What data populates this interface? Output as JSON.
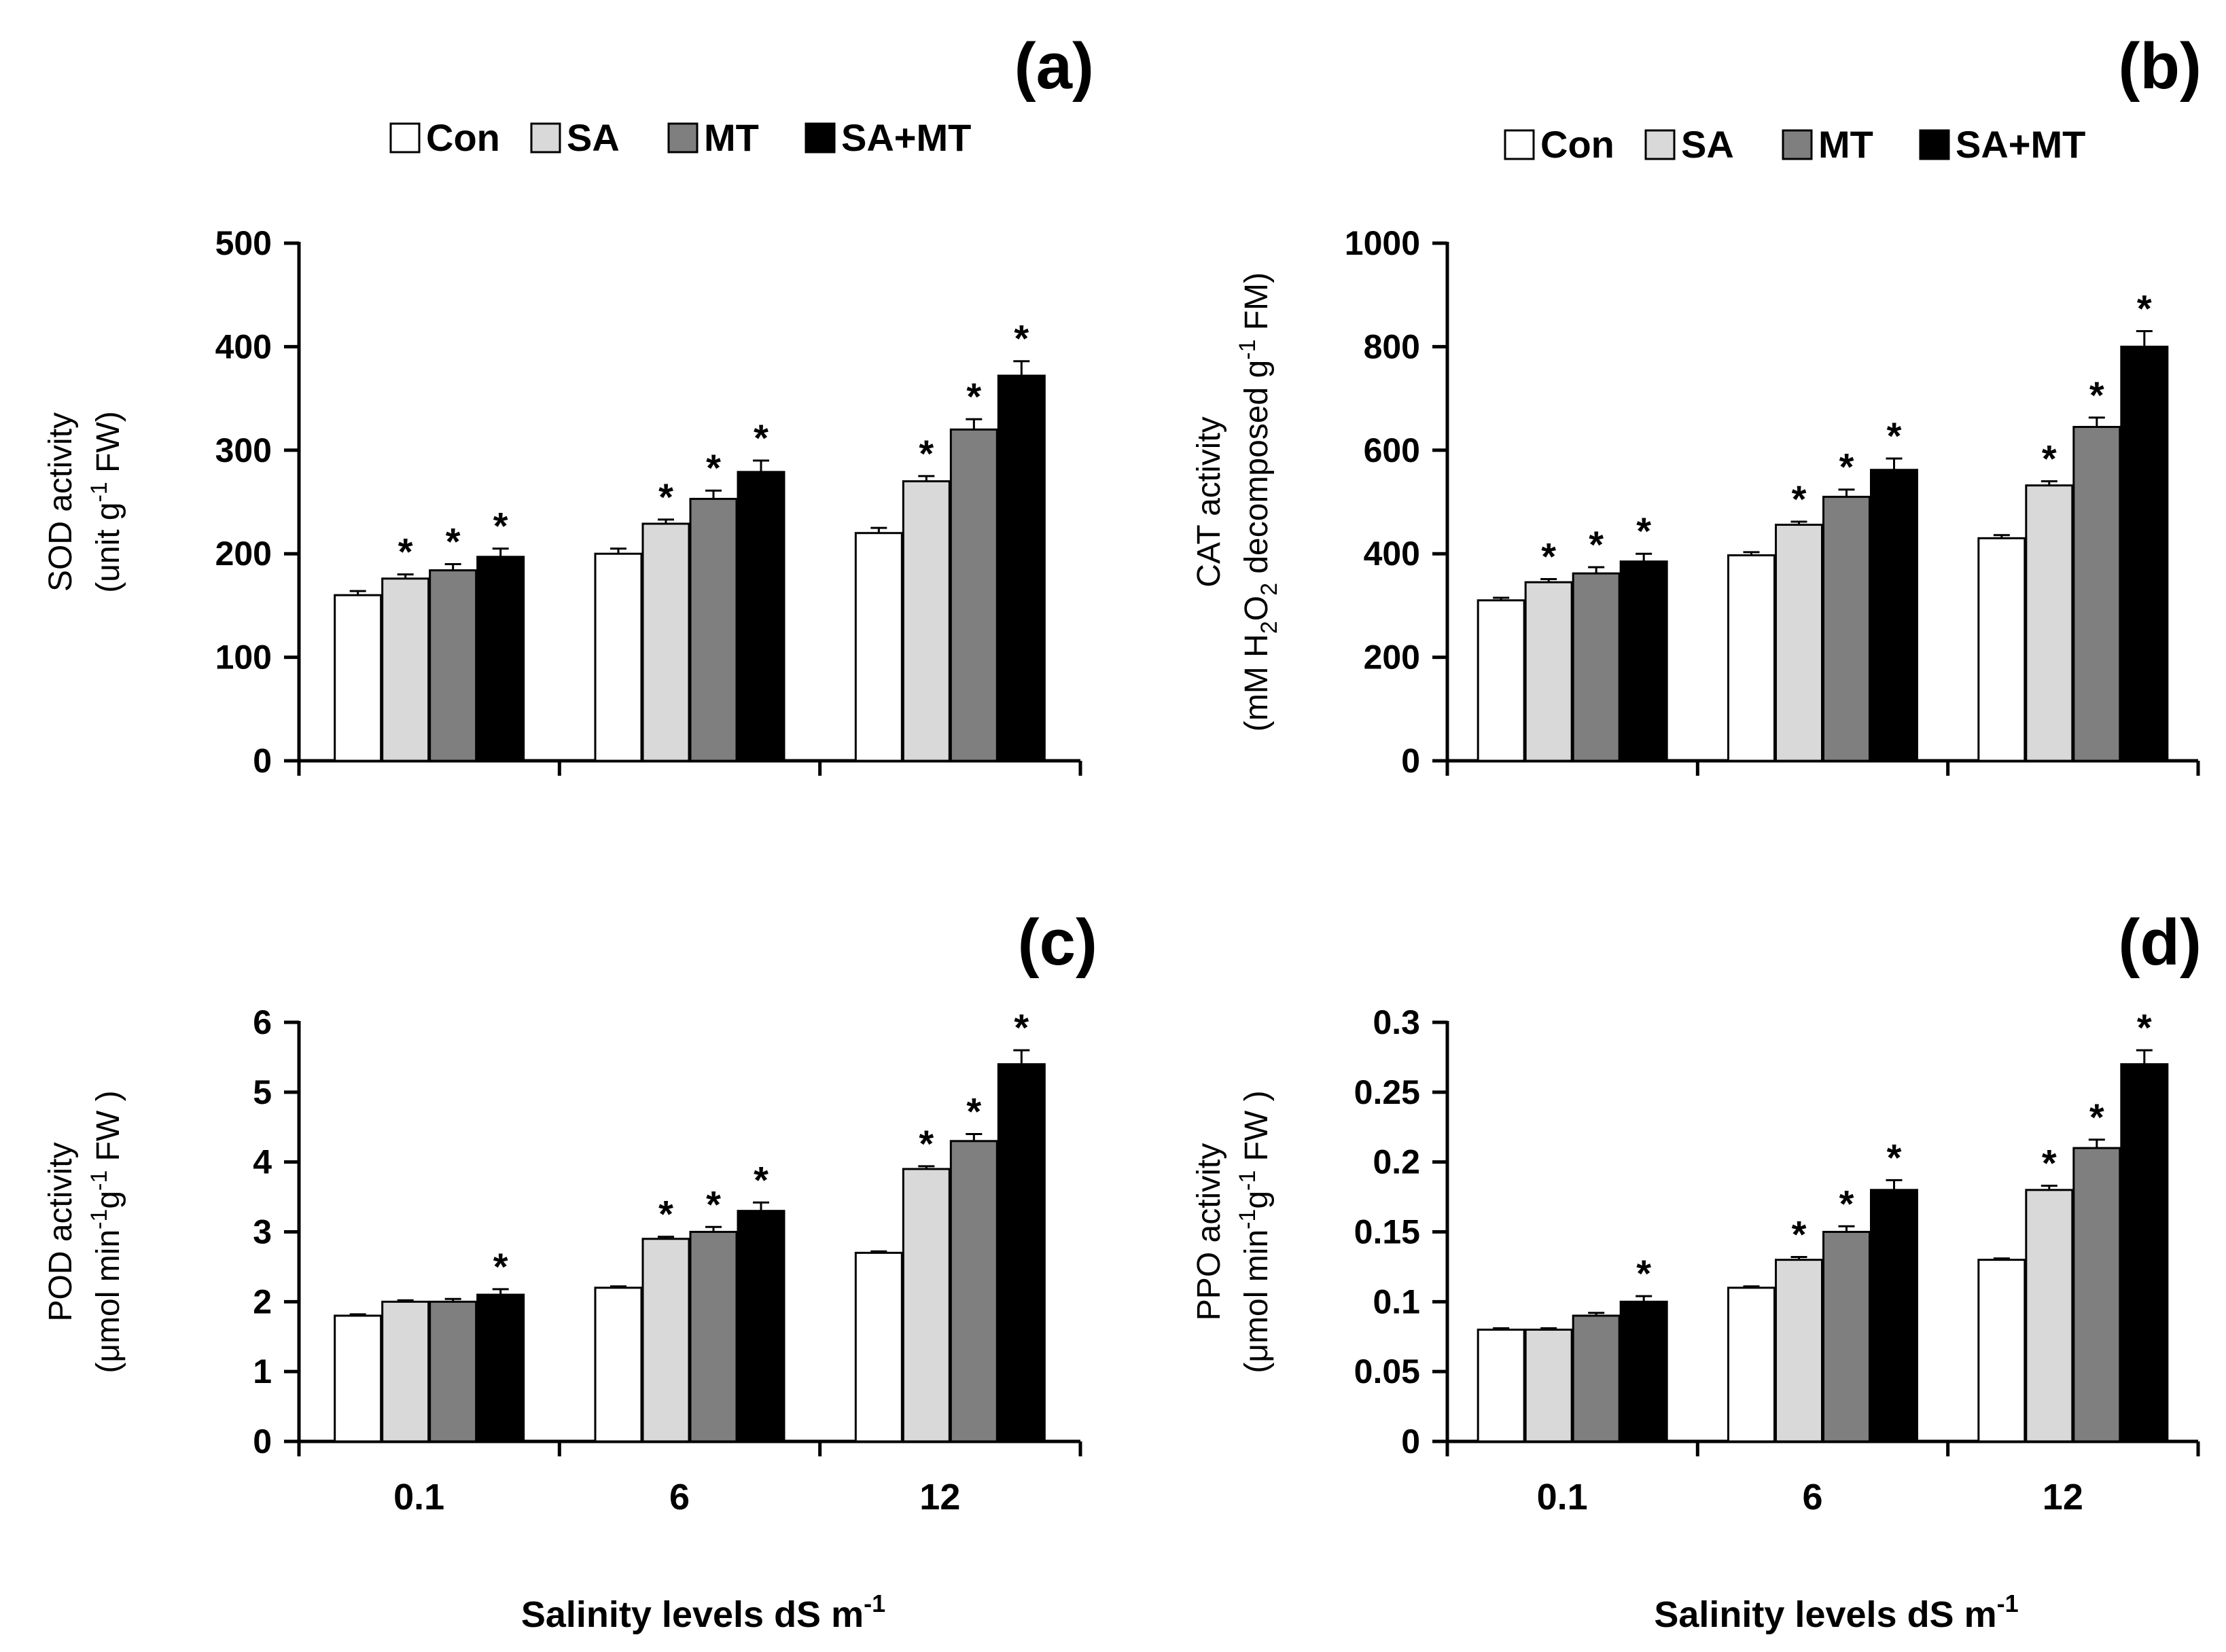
{
  "legend": {
    "items": [
      {
        "label": "Con",
        "color": "#ffffff"
      },
      {
        "label": "SA",
        "color": "#d9d9d9"
      },
      {
        "label": "MT",
        "color": "#7f7f7f"
      },
      {
        "label": "SA+MT",
        "color": "#000000"
      }
    ]
  },
  "xlabel": {
    "main": "Salinity levels dS m",
    "sup": "-1"
  },
  "chart_data": [
    {
      "type": "bar",
      "panel_label": "(a)",
      "categories": [
        "0.1",
        "6",
        "12"
      ],
      "ylim": [
        0,
        500
      ],
      "yticks": [
        "0",
        "100",
        "200",
        "300",
        "400",
        "500"
      ],
      "ylabel": {
        "line1": "SOD activity",
        "line2_parts": [
          {
            "t": "(unit g"
          },
          {
            "t": "-1",
            "sup": true
          },
          {
            "t": " FW)"
          }
        ]
      },
      "series": [
        {
          "name": "Con",
          "values": [
            160,
            200,
            220
          ],
          "errors": [
            4,
            5,
            5
          ],
          "sig": [
            false,
            false,
            false
          ]
        },
        {
          "name": "SA",
          "values": [
            176,
            229,
            270
          ],
          "errors": [
            4,
            4,
            5
          ],
          "sig": [
            true,
            true,
            true
          ]
        },
        {
          "name": "MT",
          "values": [
            184,
            253,
            320
          ],
          "errors": [
            6,
            8,
            10
          ],
          "sig": [
            true,
            true,
            true
          ]
        },
        {
          "name": "SA+MT",
          "values": [
            197,
            279,
            372
          ],
          "errors": [
            8,
            11,
            14
          ],
          "sig": [
            true,
            true,
            true
          ]
        }
      ],
      "sig_symbol": "*",
      "legend_placement": "top"
    },
    {
      "type": "bar",
      "panel_label": "(b)",
      "categories": [
        "0.1",
        "6",
        "12"
      ],
      "ylim": [
        0,
        1000
      ],
      "yticks": [
        "0",
        "200",
        "400",
        "600",
        "800",
        "1000"
      ],
      "ylabel": {
        "line1": "CAT activity",
        "line2_parts": [
          {
            "t": "(mM H"
          },
          {
            "t": "2",
            "sub": true
          },
          {
            "t": "O"
          },
          {
            "t": "2",
            "sub": true
          },
          {
            "t": " decomposed g"
          },
          {
            "t": "-1",
            "sup": true
          },
          {
            "t": " FM)"
          }
        ]
      },
      "series": [
        {
          "name": "Con",
          "values": [
            310,
            397,
            430
          ],
          "errors": [
            5,
            6,
            6
          ],
          "sig": [
            false,
            false,
            false
          ]
        },
        {
          "name": "SA",
          "values": [
            345,
            456,
            532
          ],
          "errors": [
            6,
            6,
            8
          ],
          "sig": [
            true,
            true,
            true
          ]
        },
        {
          "name": "MT",
          "values": [
            362,
            510,
            645
          ],
          "errors": [
            12,
            14,
            18
          ],
          "sig": [
            true,
            true,
            true
          ]
        },
        {
          "name": "SA+MT",
          "values": [
            385,
            562,
            800
          ],
          "errors": [
            15,
            22,
            30
          ],
          "sig": [
            true,
            true,
            true
          ]
        }
      ],
      "sig_symbol": "*",
      "legend_placement": "top"
    },
    {
      "type": "bar",
      "panel_label": "(c)",
      "categories": [
        "0.1",
        "6",
        "12"
      ],
      "ylim": [
        0,
        6
      ],
      "yticks": [
        "0",
        "1",
        "2",
        "3",
        "4",
        "5",
        "6"
      ],
      "ylabel": {
        "line1": "POD  activity",
        "line2_parts": [
          {
            "t": "(μmol min"
          },
          {
            "t": "-1",
            "sup": true
          },
          {
            "t": "g"
          },
          {
            "t": "-1",
            "sup": true
          },
          {
            "t": " FW )"
          }
        ]
      },
      "series": [
        {
          "name": "Con",
          "values": [
            1.8,
            2.2,
            2.7
          ],
          "errors": [
            0.02,
            0.02,
            0.02
          ],
          "sig": [
            false,
            false,
            false
          ]
        },
        {
          "name": "SA",
          "values": [
            2.0,
            2.9,
            3.9
          ],
          "errors": [
            0.02,
            0.03,
            0.04
          ],
          "sig": [
            false,
            true,
            true
          ]
        },
        {
          "name": "MT",
          "values": [
            2.0,
            3.0,
            4.3
          ],
          "errors": [
            0.04,
            0.07,
            0.1
          ],
          "sig": [
            false,
            true,
            true
          ]
        },
        {
          "name": "SA+MT",
          "values": [
            2.1,
            3.3,
            5.4
          ],
          "errors": [
            0.08,
            0.12,
            0.2
          ],
          "sig": [
            true,
            true,
            true
          ]
        }
      ],
      "sig_symbol": "*"
    },
    {
      "type": "bar",
      "panel_label": "(d)",
      "categories": [
        "0.1",
        "6",
        "12"
      ],
      "ylim": [
        0,
        0.3
      ],
      "yticks": [
        "0",
        "0.05",
        "0.1",
        "0.15",
        "0.2",
        "0.25",
        "0.3"
      ],
      "ylabel": {
        "line1": "PPO  activity",
        "line2_parts": [
          {
            "t": "(μmol min"
          },
          {
            "t": "-1",
            "sup": true
          },
          {
            "t": "g"
          },
          {
            "t": "-1",
            "sup": true
          },
          {
            "t": " FW )"
          }
        ]
      },
      "series": [
        {
          "name": "Con",
          "values": [
            0.08,
            0.11,
            0.13
          ],
          "errors": [
            0.001,
            0.001,
            0.001
          ],
          "sig": [
            false,
            false,
            false
          ]
        },
        {
          "name": "SA",
          "values": [
            0.08,
            0.13,
            0.18
          ],
          "errors": [
            0.001,
            0.002,
            0.003
          ],
          "sig": [
            false,
            true,
            true
          ]
        },
        {
          "name": "MT",
          "values": [
            0.09,
            0.15,
            0.21
          ],
          "errors": [
            0.002,
            0.004,
            0.006
          ],
          "sig": [
            false,
            true,
            true
          ]
        },
        {
          "name": "SA+MT",
          "values": [
            0.1,
            0.18,
            0.27
          ],
          "errors": [
            0.004,
            0.007,
            0.01
          ],
          "sig": [
            true,
            true,
            true
          ]
        }
      ],
      "sig_symbol": "*"
    }
  ]
}
